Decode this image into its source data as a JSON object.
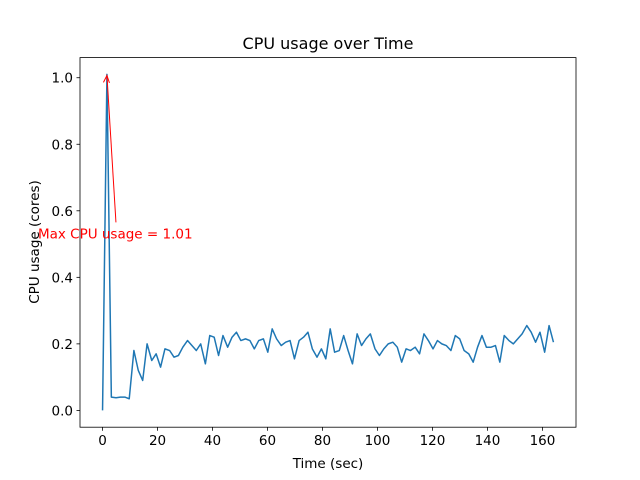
{
  "chart_data": {
    "type": "line",
    "title": "CPU usage over Time",
    "x_label": "Time (sec)",
    "y_label": "CPU usage (cores)",
    "x": [
      0,
      1.6,
      3.2,
      4.9,
      6.5,
      8.1,
      9.7,
      11.4,
      13.0,
      14.6,
      16.2,
      17.9,
      19.5,
      21.1,
      22.7,
      24.4,
      26.0,
      27.6,
      29.2,
      30.9,
      32.5,
      34.1,
      35.7,
      37.4,
      39.0,
      40.6,
      42.2,
      43.8,
      45.5,
      47.1,
      48.7,
      50.3,
      52.0,
      53.6,
      55.2,
      56.8,
      58.5,
      60.1,
      61.7,
      63.3,
      65.0,
      66.6,
      68.2,
      69.8,
      71.5,
      73.1,
      74.7,
      76.3,
      78.0,
      79.6,
      81.2,
      82.8,
      84.4,
      86.1,
      87.7,
      89.3,
      90.9,
      92.6,
      94.2,
      95.8,
      97.4,
      99.1,
      100.7,
      102.3,
      103.9,
      105.6,
      107.2,
      108.8,
      110.4,
      112.0,
      113.7,
      115.3,
      116.9,
      118.5,
      120.2,
      121.8,
      123.4,
      125.0,
      126.7,
      128.3,
      129.9,
      131.5,
      133.2,
      134.8,
      136.4,
      138.0,
      139.6,
      141.3,
      142.9,
      144.5,
      146.1,
      147.8,
      149.4,
      151.0,
      152.6,
      154.3,
      155.9,
      157.5,
      159.1,
      160.8,
      162.4,
      164.0
    ],
    "series": [
      {
        "name": "CPU usage",
        "color": "#1f77b4",
        "values": [
          0,
          1.01,
          0.04,
          0.038,
          0.04,
          0.04,
          0.035,
          0.18,
          0.12,
          0.09,
          0.2,
          0.15,
          0.17,
          0.13,
          0.185,
          0.18,
          0.16,
          0.165,
          0.19,
          0.21,
          0.195,
          0.18,
          0.2,
          0.14,
          0.225,
          0.22,
          0.165,
          0.225,
          0.19,
          0.22,
          0.235,
          0.21,
          0.215,
          0.21,
          0.185,
          0.21,
          0.215,
          0.175,
          0.245,
          0.215,
          0.195,
          0.205,
          0.21,
          0.155,
          0.21,
          0.22,
          0.235,
          0.185,
          0.16,
          0.185,
          0.155,
          0.245,
          0.175,
          0.18,
          0.225,
          0.18,
          0.14,
          0.23,
          0.195,
          0.215,
          0.23,
          0.185,
          0.165,
          0.185,
          0.2,
          0.205,
          0.19,
          0.145,
          0.185,
          0.18,
          0.19,
          0.17,
          0.23,
          0.21,
          0.185,
          0.21,
          0.2,
          0.195,
          0.18,
          0.225,
          0.215,
          0.18,
          0.17,
          0.145,
          0.19,
          0.225,
          0.19,
          0.19,
          0.195,
          0.145,
          0.225,
          0.21,
          0.2,
          0.215,
          0.23,
          0.255,
          0.235,
          0.205,
          0.235,
          0.175,
          0.255,
          0.205
        ]
      }
    ],
    "annotation": {
      "text": "Max CPU usage = 1.01",
      "x": 1.6,
      "y": 1.01,
      "color": "#ff0000"
    },
    "xlim": [
      -8.2,
      172.2
    ],
    "xticks": [
      0,
      20,
      40,
      60,
      80,
      100,
      120,
      140,
      160
    ],
    "ylim": [
      -0.0505,
      1.0605
    ],
    "yticks": [
      {
        "value": 0,
        "label": "0.0"
      },
      {
        "value": 0.2,
        "label": "0.2"
      },
      {
        "value": 0.4,
        "label": "0.4"
      },
      {
        "value": 0.6,
        "label": "0.6"
      },
      {
        "value": 0.8,
        "label": "0.8"
      },
      {
        "value": 1,
        "label": "1.0"
      }
    ]
  }
}
